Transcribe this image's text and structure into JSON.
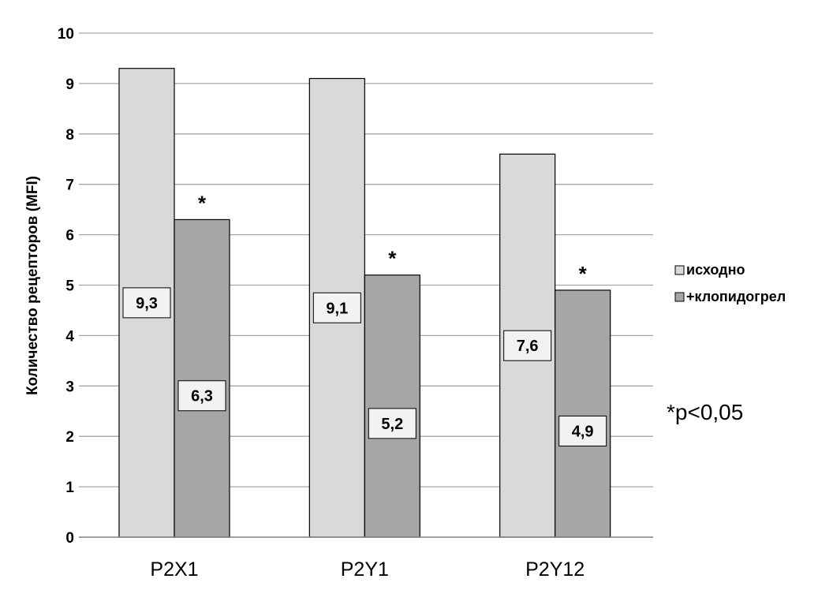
{
  "chart_data": {
    "type": "bar",
    "categories": [
      "P2X1",
      "P2Y1",
      "P2Y12"
    ],
    "series": [
      {
        "name": "исходно",
        "values": [
          9.3,
          9.1,
          7.6
        ],
        "labels": [
          "9,3",
          "9,1",
          "7,6"
        ],
        "color": "#d9d9d9"
      },
      {
        "name": "+клопидогрел",
        "values": [
          6.3,
          5.2,
          4.9
        ],
        "labels": [
          "6,3",
          "5,2",
          "4,9"
        ],
        "color": "#a6a6a6",
        "markers": [
          "*",
          "*",
          "*"
        ]
      }
    ],
    "ylabel": "Количество рецепторов (MFI)",
    "ylim": [
      0,
      10
    ],
    "yticks": [
      "0",
      "1",
      "2",
      "3",
      "4",
      "5",
      "6",
      "7",
      "8",
      "9",
      "10"
    ],
    "grid": true,
    "legend_position": "right",
    "annotation": "*p<0,05"
  }
}
